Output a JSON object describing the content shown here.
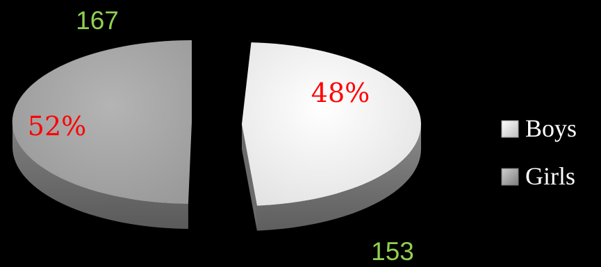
{
  "chart_data": {
    "type": "pie",
    "style": "3d-exploded",
    "categories": [
      "Boys",
      "Girls"
    ],
    "values": [
      153,
      167
    ],
    "percent_labels": [
      "48%",
      "52%"
    ],
    "count_labels": [
      "153",
      "167"
    ],
    "legend": {
      "placement": "right",
      "entries": [
        "Boys",
        "Girls"
      ]
    },
    "colors": {
      "background": "#000000",
      "boys_top": "#f2f2f2",
      "boys_side": "#7a7a7a",
      "girls_top": "#a6a6a6",
      "girls_side": "#6f6f6f",
      "percent_text": "#ff0000",
      "count_text": "#92d050",
      "legend_text": "#ffffff"
    }
  }
}
